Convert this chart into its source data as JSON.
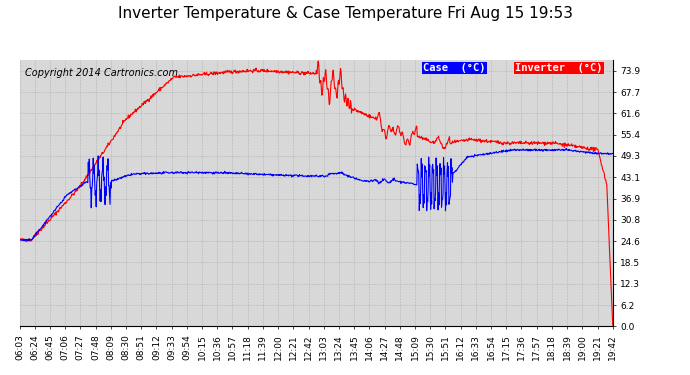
{
  "title": "Inverter Temperature & Case Temperature Fri Aug 15 19:53",
  "copyright": "Copyright 2014 Cartronics.com",
  "legend_case_label": "Case  (°C)",
  "legend_inverter_label": "Inverter  (°C)",
  "case_color": "#0000ff",
  "inverter_color": "#ff0000",
  "background_color": "#ffffff",
  "plot_bg_color": "#d8d8d8",
  "grid_color": "#b0b0b0",
  "yticks": [
    0.0,
    6.2,
    12.3,
    18.5,
    24.6,
    30.8,
    36.9,
    43.1,
    49.3,
    55.4,
    61.6,
    67.7,
    73.9
  ],
  "ylim": [
    0.0,
    77.0
  ],
  "xtick_labels": [
    "06:03",
    "06:24",
    "06:45",
    "07:06",
    "07:27",
    "07:48",
    "08:09",
    "08:30",
    "08:51",
    "09:12",
    "09:33",
    "09:54",
    "10:15",
    "10:36",
    "10:57",
    "11:18",
    "11:39",
    "12:00",
    "12:21",
    "12:42",
    "13:03",
    "13:24",
    "13:45",
    "14:06",
    "14:27",
    "14:48",
    "15:09",
    "15:30",
    "15:51",
    "16:12",
    "16:33",
    "16:54",
    "17:15",
    "17:36",
    "17:57",
    "18:18",
    "18:39",
    "19:00",
    "19:21",
    "19:42"
  ],
  "title_fontsize": 11,
  "copyright_fontsize": 7,
  "tick_fontsize": 6.5,
  "legend_fontsize": 7.5
}
